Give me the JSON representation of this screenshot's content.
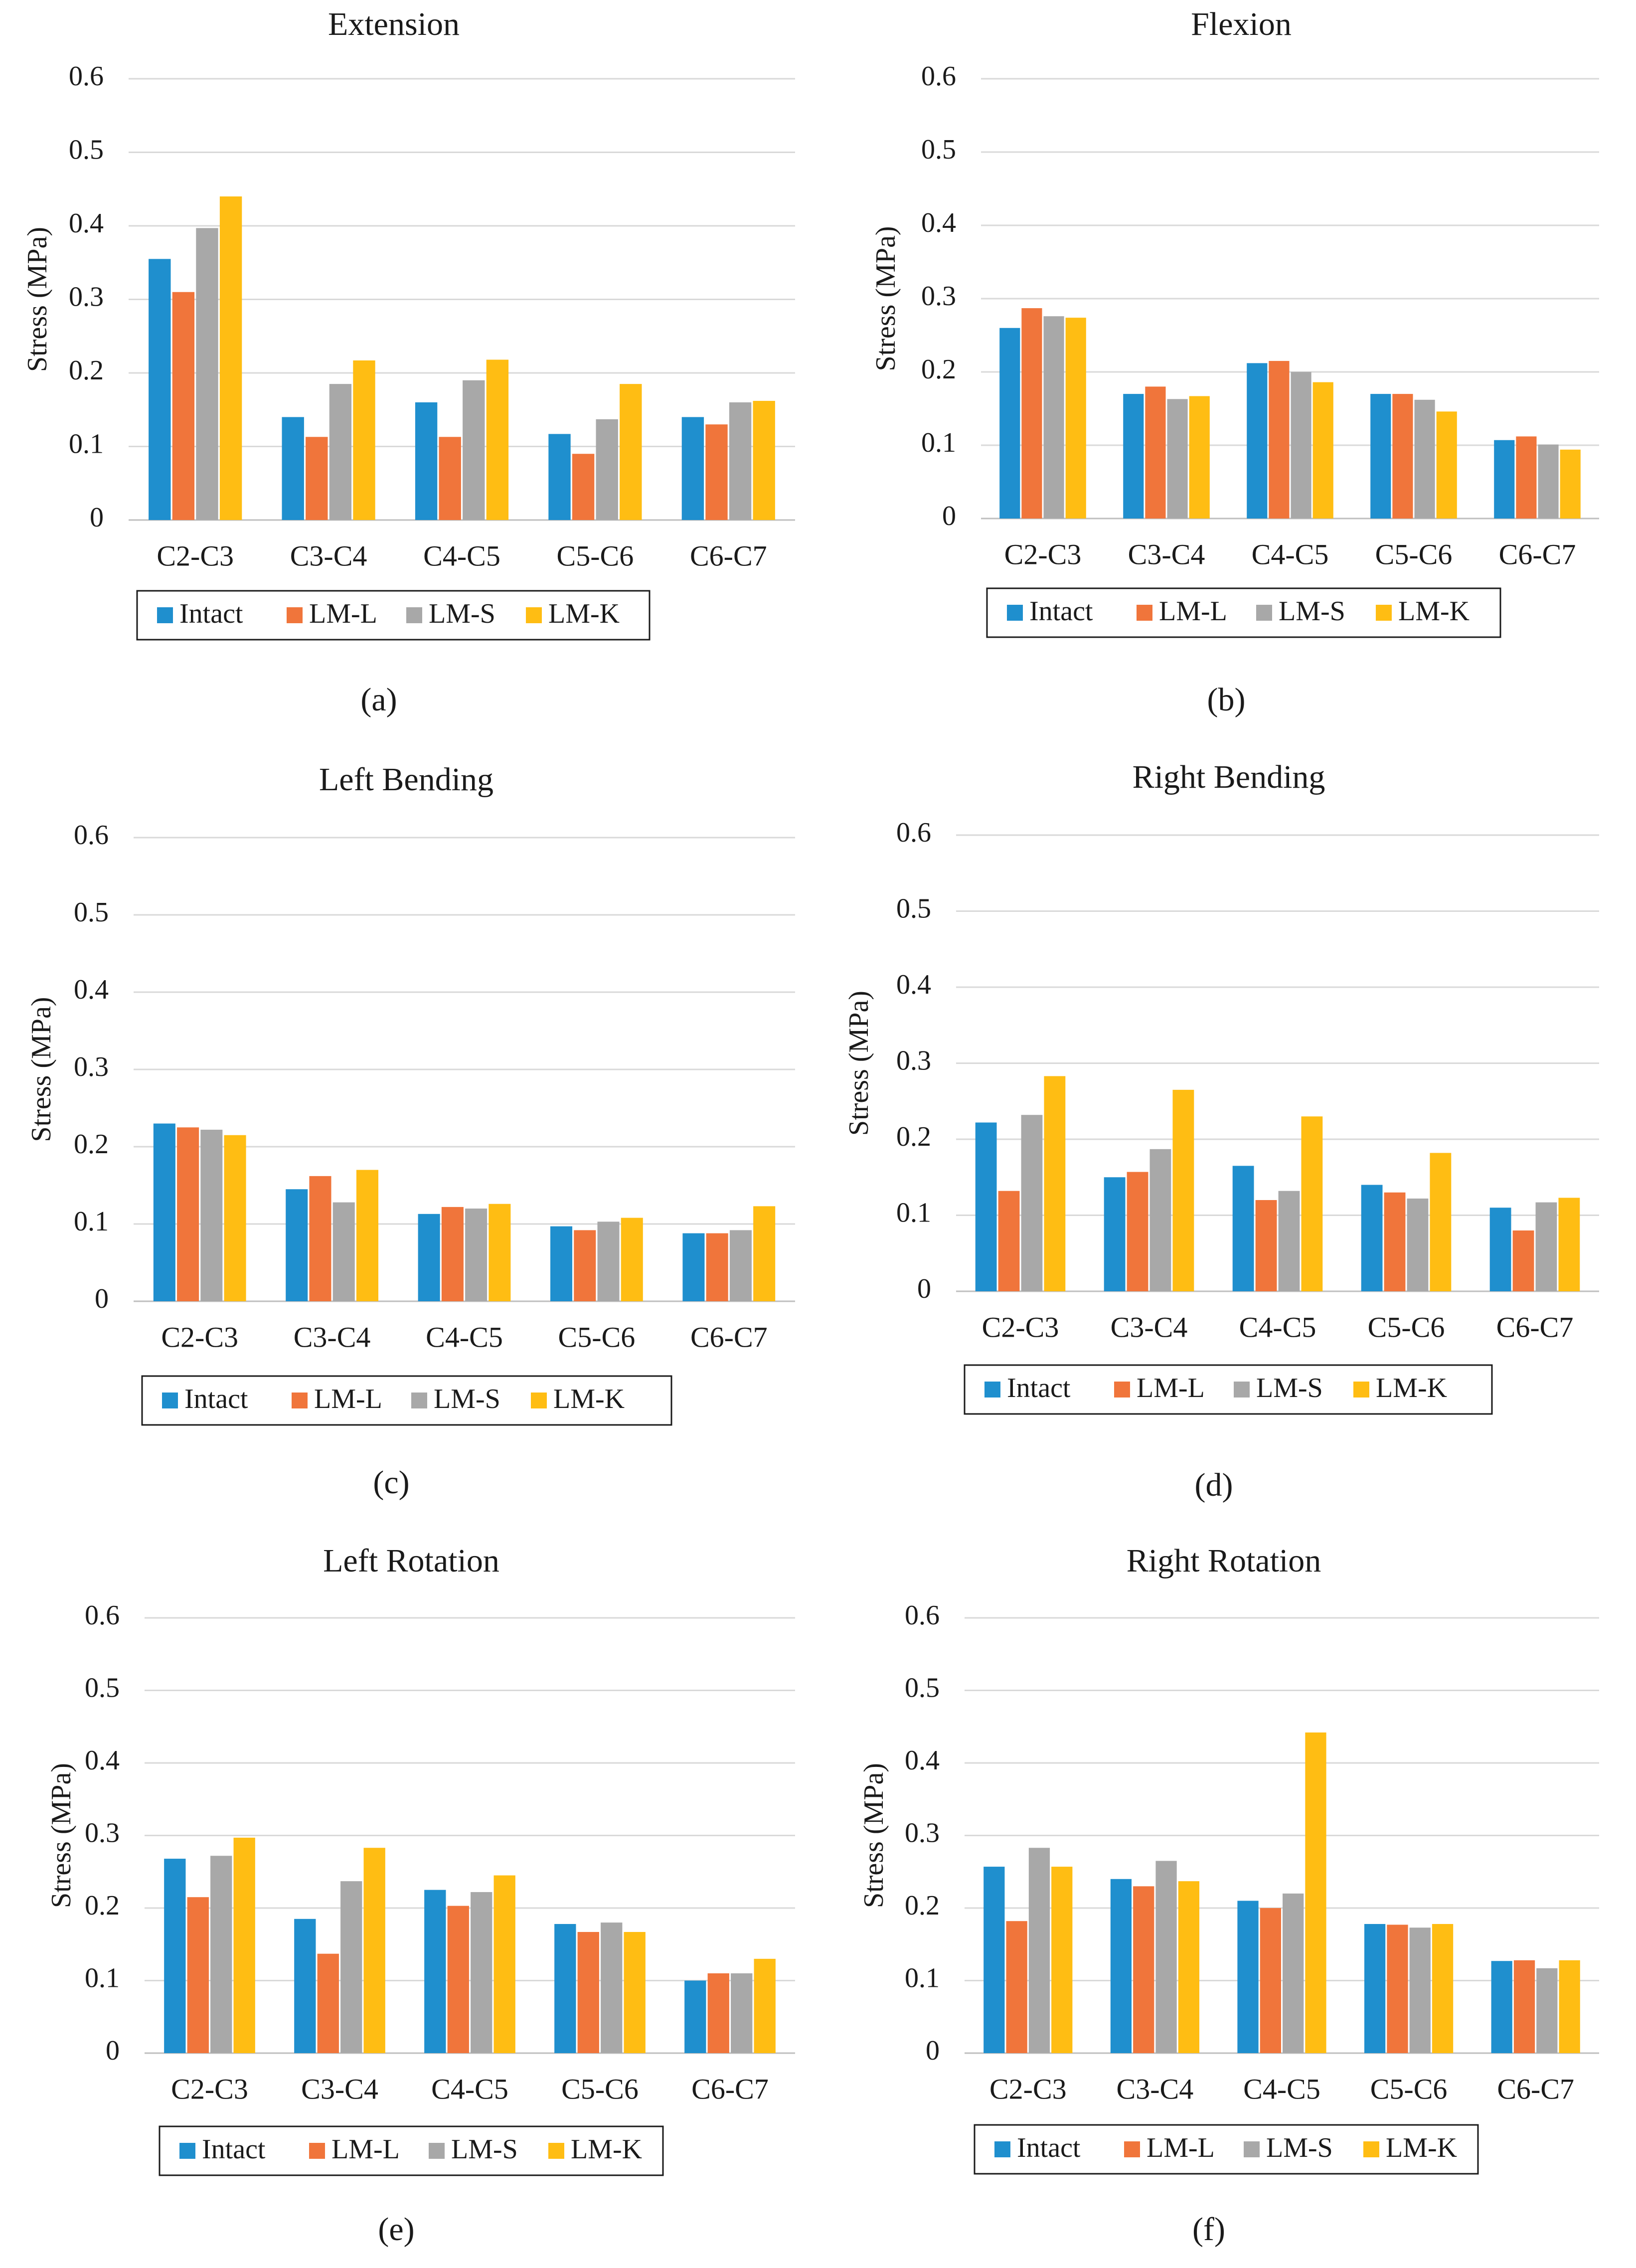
{
  "chart_data": [
    {
      "type": "bar",
      "panel": "(a)",
      "title": "Extension",
      "ylabel": "Stress (MPa)",
      "xlabel": "",
      "ylim": [
        0,
        0.6
      ],
      "yticks": [
        "0",
        "0.1",
        "0.2",
        "0.3",
        "0.4",
        "0.5",
        "0.6"
      ],
      "grid": true,
      "legend_position": "bottom",
      "categories": [
        "C2-C3",
        "C3-C4",
        "C4-C5",
        "C5-C6",
        "C6-C7"
      ],
      "series": [
        {
          "name": "Intact",
          "color": "#1F8FCE",
          "values": [
            0.355,
            0.14,
            0.16,
            0.117,
            0.14
          ]
        },
        {
          "name": "LM-L",
          "color": "#F0753B",
          "values": [
            0.31,
            0.113,
            0.113,
            0.09,
            0.13
          ]
        },
        {
          "name": "LM-S",
          "color": "#A8A8A8",
          "values": [
            0.397,
            0.185,
            0.19,
            0.137,
            0.16
          ]
        },
        {
          "name": "LM-K",
          "color": "#FFBD13",
          "values": [
            0.44,
            0.217,
            0.218,
            0.185,
            0.162
          ]
        }
      ]
    },
    {
      "type": "bar",
      "panel": "(b)",
      "title": "Flexion",
      "ylabel": "Stress (MPa)",
      "xlabel": "",
      "ylim": [
        0,
        0.6
      ],
      "yticks": [
        "0",
        "0.1",
        "0.2",
        "0.3",
        "0.4",
        "0.5",
        "0.6"
      ],
      "grid": true,
      "legend_position": "bottom",
      "categories": [
        "C2-C3",
        "C3-C4",
        "C4-C5",
        "C5-C6",
        "C6-C7"
      ],
      "series": [
        {
          "name": "Intact",
          "color": "#1F8FCE",
          "values": [
            0.26,
            0.17,
            0.212,
            0.17,
            0.107
          ]
        },
        {
          "name": "LM-L",
          "color": "#F0753B",
          "values": [
            0.287,
            0.18,
            0.215,
            0.17,
            0.112
          ]
        },
        {
          "name": "LM-S",
          "color": "#A8A8A8",
          "values": [
            0.276,
            0.163,
            0.2,
            0.162,
            0.101
          ]
        },
        {
          "name": "LM-K",
          "color": "#FFBD13",
          "values": [
            0.274,
            0.167,
            0.186,
            0.146,
            0.094
          ]
        }
      ]
    },
    {
      "type": "bar",
      "panel": "(c)",
      "title": "Left Bending",
      "ylabel": "Stress (MPa)",
      "xlabel": "",
      "ylim": [
        0,
        0.6
      ],
      "yticks": [
        "0",
        "0.1",
        "0.2",
        "0.3",
        "0.4",
        "0.5",
        "0.6"
      ],
      "grid": true,
      "legend_position": "bottom",
      "categories": [
        "C2-C3",
        "C3-C4",
        "C4-C5",
        "C5-C6",
        "C6-C7"
      ],
      "series": [
        {
          "name": "Intact",
          "color": "#1F8FCE",
          "values": [
            0.23,
            0.145,
            0.113,
            0.097,
            0.088
          ]
        },
        {
          "name": "LM-L",
          "color": "#F0753B",
          "values": [
            0.225,
            0.162,
            0.122,
            0.092,
            0.088
          ]
        },
        {
          "name": "LM-S",
          "color": "#A8A8A8",
          "values": [
            0.222,
            0.128,
            0.12,
            0.103,
            0.092
          ]
        },
        {
          "name": "LM-K",
          "color": "#FFBD13",
          "values": [
            0.215,
            0.17,
            0.126,
            0.108,
            0.123
          ]
        }
      ]
    },
    {
      "type": "bar",
      "panel": "(d)",
      "title": "Right Bending",
      "ylabel": "Stress (MPa)",
      "xlabel": "",
      "ylim": [
        0,
        0.6
      ],
      "yticks": [
        "0",
        "0.1",
        "0.2",
        "0.3",
        "0.4",
        "0.5",
        "0.6"
      ],
      "grid": true,
      "legend_position": "bottom",
      "categories": [
        "C2-C3",
        "C3-C4",
        "C4-C5",
        "C5-C6",
        "C6-C7"
      ],
      "series": [
        {
          "name": "Intact",
          "color": "#1F8FCE",
          "values": [
            0.222,
            0.15,
            0.165,
            0.14,
            0.11
          ]
        },
        {
          "name": "LM-L",
          "color": "#F0753B",
          "values": [
            0.132,
            0.157,
            0.12,
            0.13,
            0.08
          ]
        },
        {
          "name": "LM-S",
          "color": "#A8A8A8",
          "values": [
            0.232,
            0.187,
            0.132,
            0.122,
            0.117
          ]
        },
        {
          "name": "LM-K",
          "color": "#FFBD13",
          "values": [
            0.283,
            0.265,
            0.23,
            0.182,
            0.123
          ]
        }
      ]
    },
    {
      "type": "bar",
      "panel": "(e)",
      "title": "Left Rotation",
      "ylabel": "Stress (MPa)",
      "xlabel": "",
      "ylim": [
        0,
        0.6
      ],
      "yticks": [
        "0",
        "0.1",
        "0.2",
        "0.3",
        "0.4",
        "0.5",
        "0.6"
      ],
      "grid": true,
      "legend_position": "bottom",
      "categories": [
        "C2-C3",
        "C3-C4",
        "C4-C5",
        "C5-C6",
        "C6-C7"
      ],
      "series": [
        {
          "name": "Intact",
          "color": "#1F8FCE",
          "values": [
            0.268,
            0.185,
            0.225,
            0.178,
            0.1
          ]
        },
        {
          "name": "LM-L",
          "color": "#F0753B",
          "values": [
            0.215,
            0.137,
            0.203,
            0.167,
            0.11
          ]
        },
        {
          "name": "LM-S",
          "color": "#A8A8A8",
          "values": [
            0.272,
            0.237,
            0.222,
            0.18,
            0.11
          ]
        },
        {
          "name": "LM-K",
          "color": "#FFBD13",
          "values": [
            0.297,
            0.283,
            0.245,
            0.167,
            0.13
          ]
        }
      ]
    },
    {
      "type": "bar",
      "panel": "(f)",
      "title": "Right Rotation",
      "ylabel": "Stress (MPa)",
      "xlabel": "",
      "ylim": [
        0,
        0.6
      ],
      "yticks": [
        "0",
        "0.1",
        "0.2",
        "0.3",
        "0.4",
        "0.5",
        "0.6"
      ],
      "grid": true,
      "legend_position": "bottom",
      "categories": [
        "C2-C3",
        "C3-C4",
        "C4-C5",
        "C5-C6",
        "C6-C7"
      ],
      "series": [
        {
          "name": "Intact",
          "color": "#1F8FCE",
          "values": [
            0.257,
            0.24,
            0.21,
            0.178,
            0.127
          ]
        },
        {
          "name": "LM-L",
          "color": "#F0753B",
          "values": [
            0.182,
            0.23,
            0.2,
            0.177,
            0.128
          ]
        },
        {
          "name": "LM-S",
          "color": "#A8A8A8",
          "values": [
            0.283,
            0.265,
            0.22,
            0.173,
            0.117
          ]
        },
        {
          "name": "LM-K",
          "color": "#FFBD13",
          "values": [
            0.257,
            0.237,
            0.442,
            0.178,
            0.128
          ]
        }
      ]
    }
  ]
}
